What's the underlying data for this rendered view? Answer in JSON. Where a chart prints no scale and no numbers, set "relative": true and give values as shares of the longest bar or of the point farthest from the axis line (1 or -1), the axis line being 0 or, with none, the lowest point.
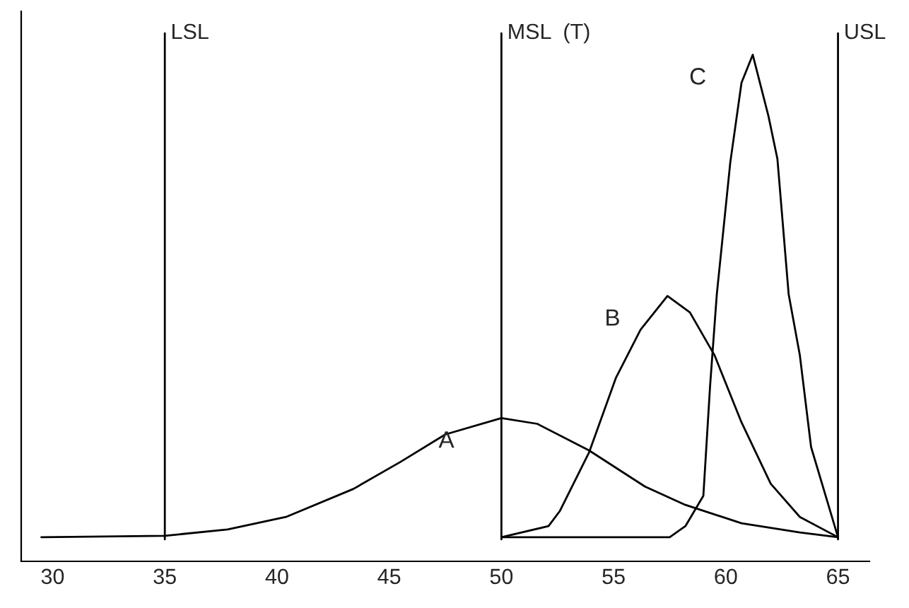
{
  "chart_data": {
    "type": "line",
    "relative": true,
    "tick_labels": "x",
    "grid": false,
    "legend": false,
    "marker": "none",
    "line_style": "solid",
    "xlim": [
      28.6,
      66.4
    ],
    "xticks": [
      30,
      35,
      40,
      45,
      50,
      55,
      60,
      65
    ],
    "series": [
      {
        "name": "A",
        "color": "#000000",
        "x": [
          29.5,
          35,
          37.8,
          40.4,
          43.4,
          45.5,
          47.5,
          50,
          51.6,
          53.9,
          56.4,
          58.2,
          60.7,
          63.3,
          65
        ],
        "values": [
          0,
          0.003,
          0.016,
          0.042,
          0.1,
          0.156,
          0.213,
          0.247,
          0.235,
          0.18,
          0.105,
          0.067,
          0.029,
          0.01,
          0
        ]
      },
      {
        "name": "B",
        "color": "#000000",
        "x": [
          50,
          52.1,
          52.6,
          53.9,
          55.1,
          56.2,
          57.4,
          58.4,
          59.5,
          60.7,
          62.0,
          63.3,
          65
        ],
        "values": [
          0,
          0.023,
          0.054,
          0.175,
          0.33,
          0.43,
          0.5,
          0.466,
          0.377,
          0.238,
          0.111,
          0.042,
          0
        ]
      },
      {
        "name": "C",
        "color": "#000000",
        "x": [
          50,
          57.5,
          58.2,
          59.0,
          59.3,
          59.6,
          60.2,
          60.7,
          61.2,
          61.9,
          62.3,
          62.8,
          63.3,
          63.8,
          65
        ],
        "values": [
          0,
          0,
          0.023,
          0.086,
          0.314,
          0.504,
          0.777,
          0.942,
          1.0,
          0.873,
          0.784,
          0.504,
          0.377,
          0.187,
          0
        ]
      }
    ],
    "ref_lines": [
      {
        "axis": "x",
        "value": 35,
        "label": "LSL",
        "color": "#000000"
      },
      {
        "axis": "x",
        "value": 50,
        "label": "MSL  (T)",
        "color": "#000000"
      },
      {
        "axis": "x",
        "value": 65,
        "label": "USL",
        "color": "#000000"
      }
    ]
  }
}
